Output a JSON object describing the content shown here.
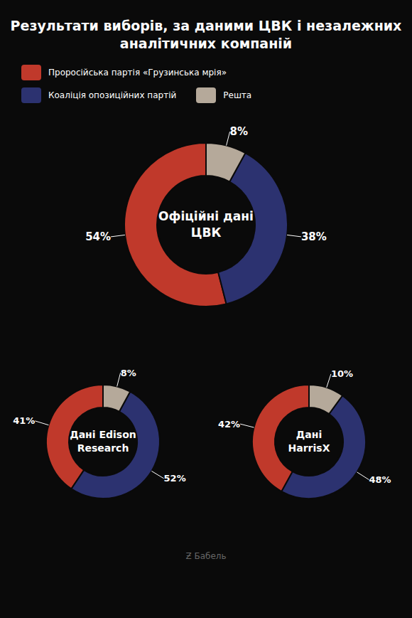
{
  "title": "Результати виборів, за даними ЦВК і незалежних\nаналітичних компаній",
  "annotations": [
    "Ƶ Бабель"
  ],
  "legend": "top",
  "chart_data": [
    {
      "type": "pie",
      "title": "Офіційні дані\nЦВК",
      "categories": [
        "Проросійська партія «Грузинська мрія»",
        "Коаліція опозиційних партій",
        "Решта"
      ],
      "values": [
        54,
        38,
        8
      ],
      "value_labels": [
        "54%",
        "38%",
        "8%"
      ],
      "colors": [
        "#c0392b",
        "#2c3270",
        "#b5a99a"
      ],
      "data_labels": true
    },
    {
      "type": "pie",
      "title": "Дані Edison\nResearch",
      "categories": [
        "Проросійська партія «Грузинська мрія»",
        "Коаліція опозиційних партій",
        "Решта"
      ],
      "values": [
        41,
        52,
        8
      ],
      "value_labels": [
        "41%",
        "52%",
        "8%"
      ],
      "colors": [
        "#c0392b",
        "#2c3270",
        "#b5a99a"
      ],
      "data_labels": true
    },
    {
      "type": "pie",
      "title": "Дані\nHarrisX",
      "categories": [
        "Проросійська партія «Грузинська мрія»",
        "Коаліція опозиційних партій",
        "Решта"
      ],
      "values": [
        42,
        48,
        10
      ],
      "value_labels": [
        "42%",
        "48%",
        "10%"
      ],
      "colors": [
        "#c0392b",
        "#2c3270",
        "#b5a99a"
      ],
      "data_labels": true
    }
  ]
}
